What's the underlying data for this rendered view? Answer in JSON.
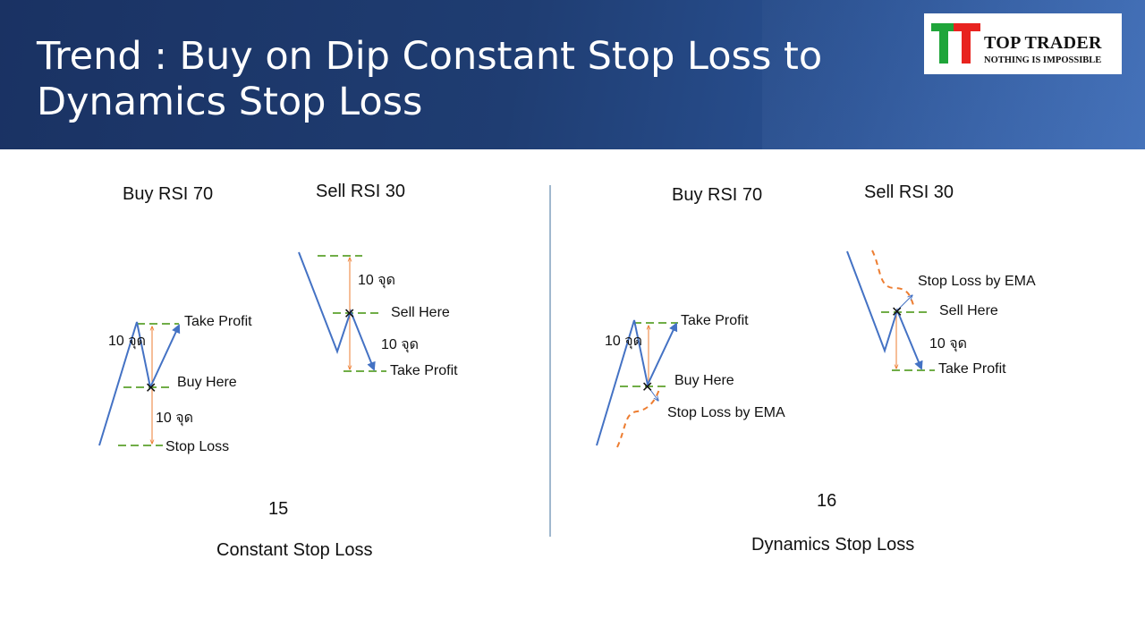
{
  "slide": {
    "title": "Trend : Buy on Dip Constant Stop Loss to Dynamics Stop Loss",
    "logo": {
      "name": "TOP TRADER",
      "tagline": "NOTHING IS IMPOSSIBLE",
      "colors": [
        "#1fa53a",
        "#e8231f"
      ]
    }
  },
  "left_panel": {
    "buy_heading": "Buy RSI 70",
    "sell_heading": "Sell RSI 30",
    "buy": {
      "take_profit": "Take Profit",
      "points_up": "10 จุด",
      "buy_here": "Buy Here",
      "points_down": "10 จุด",
      "stop_loss": "Stop Loss"
    },
    "sell": {
      "points_up": "10 จุด",
      "sell_here": "Sell Here",
      "points_down": "10 จุด",
      "take_profit": "Take Profit"
    },
    "number": "15",
    "caption": "Constant Stop Loss"
  },
  "right_panel": {
    "buy_heading": "Buy RSI 70",
    "sell_heading": "Sell RSI 30",
    "buy": {
      "take_profit": "Take Profit",
      "points": "10 จุด",
      "buy_here": "Buy Here",
      "stop_loss": "Stop Loss by EMA"
    },
    "sell": {
      "stop_loss": "Stop Loss by EMA",
      "sell_here": "Sell Here",
      "points": "10 จุด",
      "take_profit": "Take Profit"
    },
    "number": "16",
    "caption": "Dynamics Stop Loss"
  },
  "colors": {
    "price_line": "#4472c4",
    "level_line": "#70ad47",
    "range_arrow": "#ed7d31",
    "ema_line": "#ed7d31",
    "divider": "#41719c"
  }
}
